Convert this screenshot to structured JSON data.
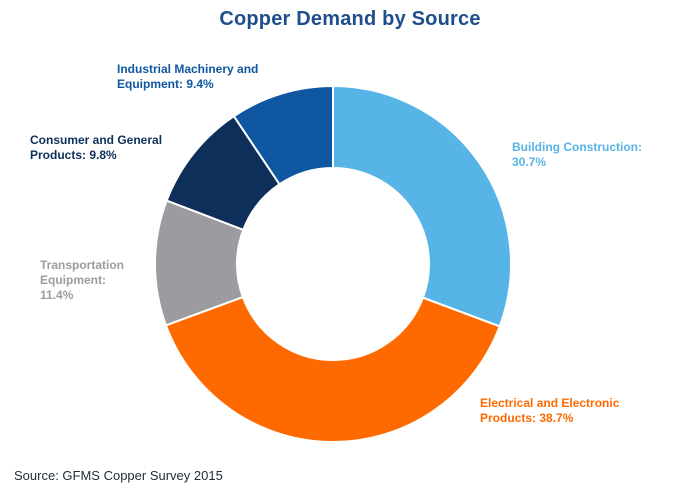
{
  "chart_data": {
    "type": "pie",
    "title": "Copper Demand by Source",
    "source": "Source: GFMS Copper Survey 2015",
    "slices": [
      {
        "label": "Building Construction:\n30.7%",
        "name": "Building Construction",
        "value": 30.7,
        "color": "#57b4e6"
      },
      {
        "label": "Electrical and Electronic\nProducts: 38.7%",
        "name": "Electrical and Electronic Products",
        "value": 38.7,
        "color": "#ff6a00"
      },
      {
        "label": "Transportation\nEquipment:\n11.4%",
        "name": "Transportation Equipment",
        "value": 11.4,
        "color": "#9c9ca0"
      },
      {
        "label": "Consumer and General\nProducts: 9.8%",
        "name": "Consumer and General Products",
        "value": 9.8,
        "color": "#0e2f5a"
      },
      {
        "label": "Industrial Machinery and\nEquipment: 9.4%",
        "name": "Industrial Machinery and Equipment",
        "value": 9.4,
        "color": "#0f57a1"
      }
    ]
  },
  "colors": {
    "title": "#1f4e8c",
    "label_building": "#57b4e6",
    "label_electrical": "#ff6a00",
    "label_transport": "#9c9ca0",
    "label_consumer": "#0e2f5a",
    "label_industrial": "#0f57a1",
    "source_text": "#1f2b3a"
  }
}
